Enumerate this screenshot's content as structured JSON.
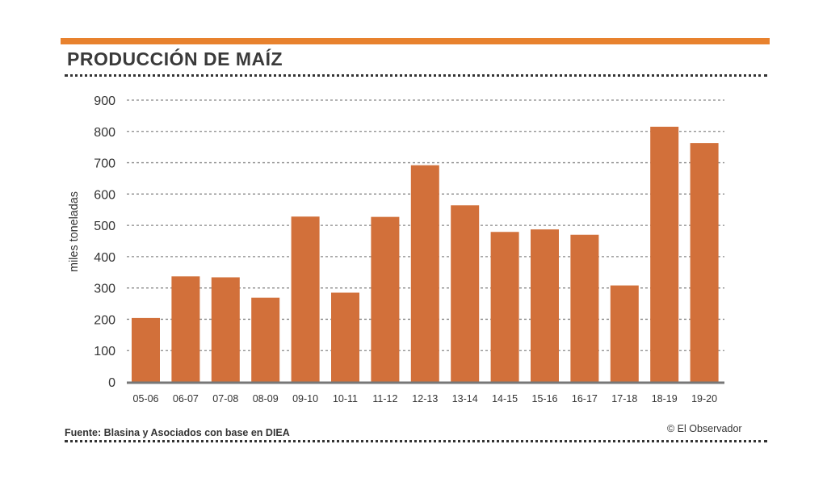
{
  "title": "PRODUCCIÓN DE MAÍZ",
  "source": "Fuente: Blasina y Asociados con base en DIEA",
  "credit": "© El Observador",
  "colors": {
    "bar": "#d2703a",
    "accent": "#e8822e",
    "grid": "#888888",
    "axis": "#777777"
  },
  "chart_data": {
    "type": "bar",
    "title": "PRODUCCIÓN DE MAÍZ",
    "xlabel": "",
    "ylabel": "miles toneladas",
    "ylim": [
      0,
      900
    ],
    "yticks": [
      "0",
      "100",
      "200",
      "300",
      "400",
      "500",
      "600",
      "700",
      "800",
      "900"
    ],
    "grid": true,
    "categories": [
      "05-06",
      "06-07",
      "07-08",
      "08-09",
      "09-10",
      "10-11",
      "11-12",
      "12-13",
      "13-14",
      "14-15",
      "15-16",
      "16-17",
      "17-18",
      "18-19",
      "19-20"
    ],
    "values": [
      204,
      337,
      334,
      269,
      528,
      285,
      527,
      692,
      564,
      479,
      487,
      470,
      308,
      815,
      763
    ]
  }
}
